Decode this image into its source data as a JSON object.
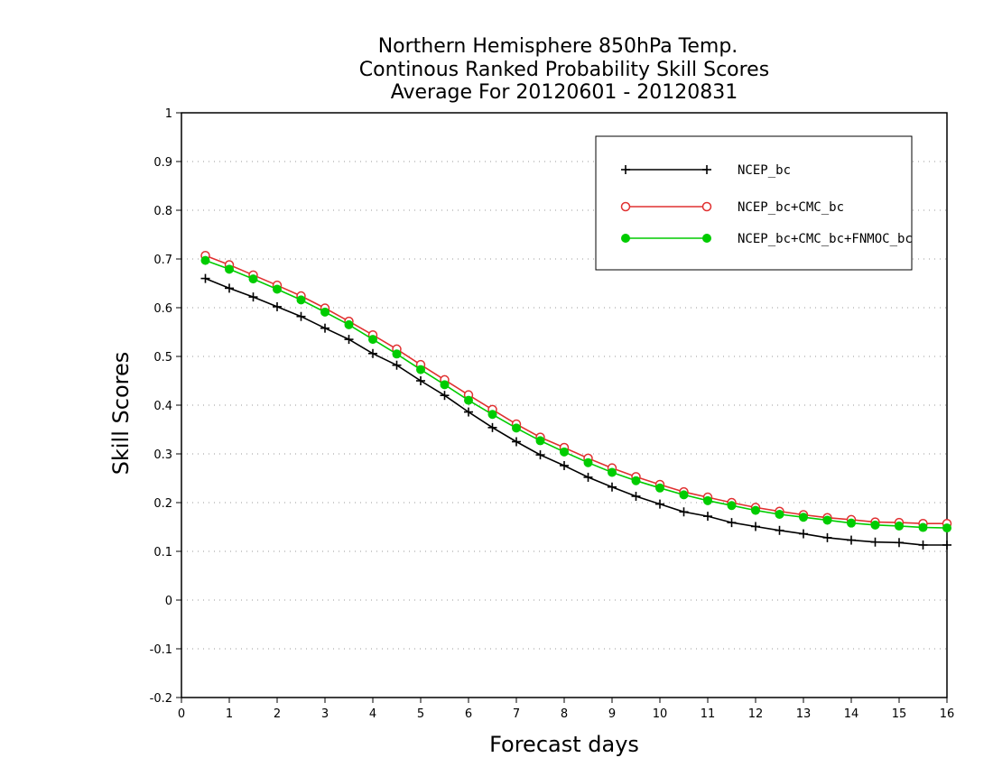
{
  "chart_data": {
    "type": "line",
    "title_lines": [
      "Northern Hemisphere 850hPa Temp.",
      "Continous Ranked Probability Skill Scores",
      "Average For 20120601 - 20120831"
    ],
    "xlabel": "Forecast days",
    "ylabel": "Skill Scores",
    "xlim": [
      0,
      16
    ],
    "ylim": [
      -0.2,
      1
    ],
    "xticks": [
      "0",
      "1",
      "2",
      "3",
      "4",
      "5",
      "6",
      "7",
      "8",
      "9",
      "10",
      "11",
      "12",
      "13",
      "14",
      "15",
      "16"
    ],
    "yticks": [
      "-0.2",
      "-0.1",
      "0",
      "0.1",
      "0.2",
      "0.3",
      "0.4",
      "0.5",
      "0.6",
      "0.7",
      "0.8",
      "0.9",
      "1"
    ],
    "grid": "horizontal dotted",
    "legend_position": "top-right",
    "x": [
      0.5,
      1,
      1.5,
      2,
      2.5,
      3,
      3.5,
      4,
      4.5,
      5,
      5.5,
      6,
      6.5,
      7,
      7.5,
      8,
      8.5,
      9,
      9.5,
      10,
      10.5,
      11,
      11.5,
      12,
      12.5,
      13,
      13.5,
      14,
      14.5,
      15,
      15.5,
      16
    ],
    "series": [
      {
        "name": "NCEP_bc",
        "color": "#000000",
        "marker": "plus",
        "values": [
          0.66,
          0.64,
          0.622,
          0.602,
          0.582,
          0.558,
          0.535,
          0.506,
          0.482,
          0.45,
          0.42,
          0.386,
          0.354,
          0.325,
          0.298,
          0.276,
          0.252,
          0.232,
          0.213,
          0.197,
          0.181,
          0.172,
          0.159,
          0.151,
          0.143,
          0.136,
          0.128,
          0.123,
          0.119,
          0.118,
          0.113,
          0.113
        ]
      },
      {
        "name": "NCEP_bc+CMC_bc",
        "color": "#e03030",
        "marker": "open-circle",
        "values": [
          0.707,
          0.688,
          0.667,
          0.646,
          0.624,
          0.599,
          0.572,
          0.544,
          0.515,
          0.483,
          0.452,
          0.421,
          0.391,
          0.361,
          0.334,
          0.313,
          0.291,
          0.271,
          0.253,
          0.237,
          0.222,
          0.211,
          0.2,
          0.19,
          0.182,
          0.175,
          0.169,
          0.165,
          0.16,
          0.159,
          0.157,
          0.157
        ]
      },
      {
        "name": "NCEP_bc+CMC_bc+FNMOC_bc",
        "color": "#00cc00",
        "marker": "filled-circle",
        "values": [
          0.697,
          0.679,
          0.659,
          0.638,
          0.616,
          0.591,
          0.565,
          0.535,
          0.505,
          0.473,
          0.442,
          0.41,
          0.381,
          0.353,
          0.327,
          0.304,
          0.282,
          0.262,
          0.245,
          0.23,
          0.216,
          0.204,
          0.194,
          0.184,
          0.176,
          0.17,
          0.164,
          0.158,
          0.154,
          0.152,
          0.149,
          0.148
        ]
      }
    ]
  }
}
